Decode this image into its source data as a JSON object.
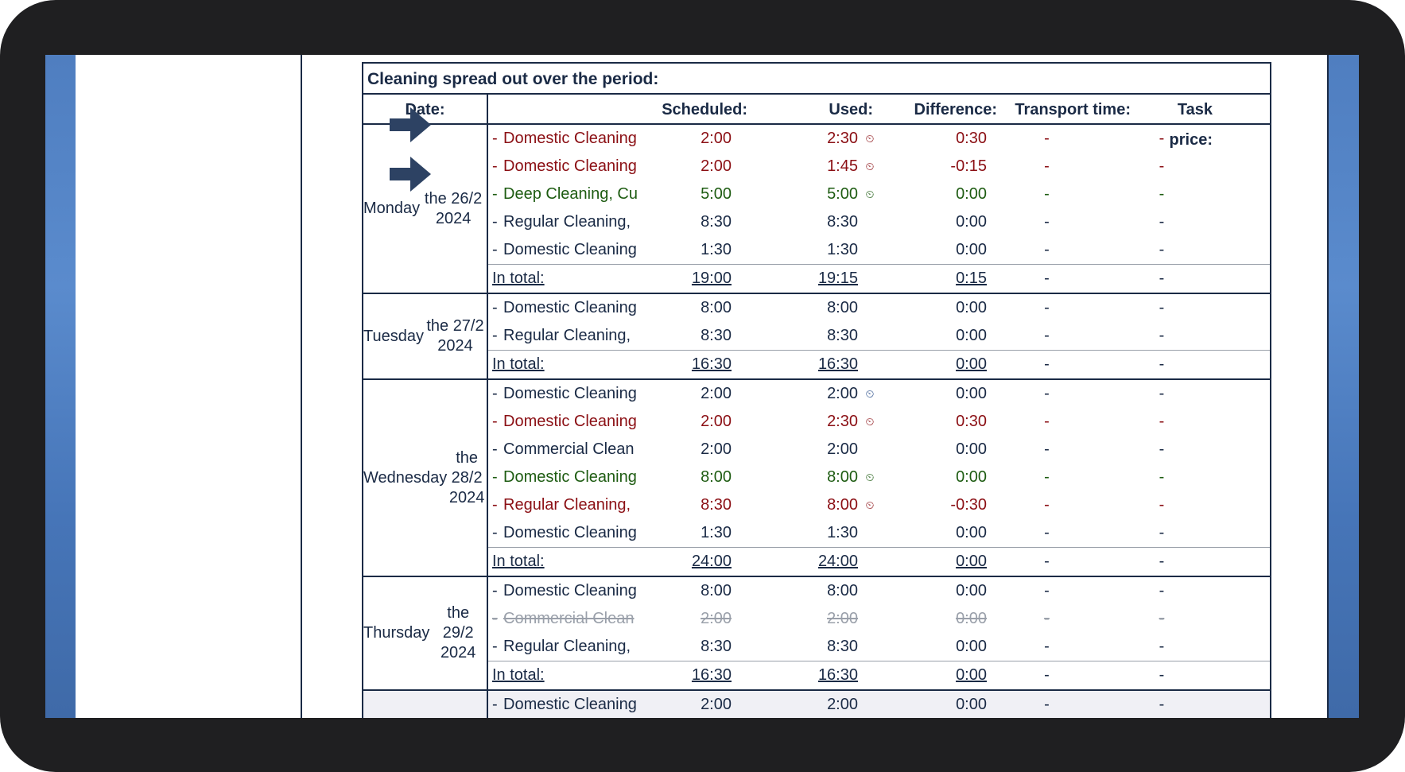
{
  "report": {
    "title": "Cleaning spread out over the period:",
    "headers": {
      "date": "Date:",
      "scheduled": "Scheduled:",
      "used": "Used:",
      "difference": "Difference:",
      "transport": "Transport time:",
      "price": "Task price:"
    },
    "total_label": "In total:",
    "days": [
      {
        "day": "Monday",
        "date": "the 26/2 2024",
        "rows": [
          {
            "desc": "Domestic Cleaning",
            "sched": "2:00",
            "used": "2:30",
            "diff": "0:30",
            "transport": "-",
            "price": "-",
            "state": "red",
            "icon": "clock-red"
          },
          {
            "desc": "Domestic Cleaning",
            "sched": "2:00",
            "used": "1:45",
            "diff": "-0:15",
            "transport": "-",
            "price": "-",
            "state": "red",
            "icon": "clock-red"
          },
          {
            "desc": "Deep Cleaning, Cu",
            "sched": "5:00",
            "used": "5:00",
            "diff": "0:00",
            "transport": "-",
            "price": "-",
            "state": "green",
            "icon": "clock-green"
          },
          {
            "desc": "Regular Cleaning,",
            "sched": "8:30",
            "used": "8:30",
            "diff": "0:00",
            "transport": "-",
            "price": "-",
            "state": "normal",
            "icon": ""
          },
          {
            "desc": "Domestic Cleaning",
            "sched": "1:30",
            "used": "1:30",
            "diff": "0:00",
            "transport": "-",
            "price": "-",
            "state": "normal",
            "icon": ""
          }
        ],
        "total": {
          "sched": "19:00",
          "used": "19:15",
          "diff": "0:15",
          "transport": "-",
          "price": "-"
        }
      },
      {
        "day": "Tuesday",
        "date": "the 27/2 2024",
        "rows": [
          {
            "desc": "Domestic Cleaning",
            "sched": "8:00",
            "used": "8:00",
            "diff": "0:00",
            "transport": "-",
            "price": "-",
            "state": "normal",
            "icon": ""
          },
          {
            "desc": "Regular Cleaning,",
            "sched": "8:30",
            "used": "8:30",
            "diff": "0:00",
            "transport": "-",
            "price": "-",
            "state": "normal",
            "icon": ""
          }
        ],
        "total": {
          "sched": "16:30",
          "used": "16:30",
          "diff": "0:00",
          "transport": "-",
          "price": "-"
        }
      },
      {
        "day": "Wednesday",
        "date": "the 28/2 2024",
        "rows": [
          {
            "desc": "Domestic Cleaning",
            "sched": "2:00",
            "used": "2:00",
            "diff": "0:00",
            "transport": "-",
            "price": "-",
            "state": "normal",
            "icon": "clock-blue"
          },
          {
            "desc": "Domestic Cleaning",
            "sched": "2:00",
            "used": "2:30",
            "diff": "0:30",
            "transport": "-",
            "price": "-",
            "state": "red",
            "icon": "clock-red"
          },
          {
            "desc": "Commercial Clean",
            "sched": "2:00",
            "used": "2:00",
            "diff": "0:00",
            "transport": "-",
            "price": "-",
            "state": "normal",
            "icon": ""
          },
          {
            "desc": "Domestic Cleaning",
            "sched": "8:00",
            "used": "8:00",
            "diff": "0:00",
            "transport": "-",
            "price": "-",
            "state": "green",
            "icon": "clock-green"
          },
          {
            "desc": "Regular Cleaning,",
            "sched": "8:30",
            "used": "8:00",
            "diff": "-0:30",
            "transport": "-",
            "price": "-",
            "state": "red",
            "icon": "clock-red"
          },
          {
            "desc": "Domestic Cleaning",
            "sched": "1:30",
            "used": "1:30",
            "diff": "0:00",
            "transport": "-",
            "price": "-",
            "state": "normal",
            "icon": ""
          }
        ],
        "total": {
          "sched": "24:00",
          "used": "24:00",
          "diff": "0:00",
          "transport": "-",
          "price": "-"
        }
      },
      {
        "day": "Thursday",
        "date": "the 29/2 2024",
        "rows": [
          {
            "desc": "Domestic Cleaning",
            "sched": "8:00",
            "used": "8:00",
            "diff": "0:00",
            "transport": "-",
            "price": "-",
            "state": "normal",
            "icon": ""
          },
          {
            "desc": "Commercial Clean",
            "sched": "2:00",
            "used": "2:00",
            "diff": "0:00",
            "transport": "-",
            "price": "-",
            "state": "struck",
            "icon": ""
          },
          {
            "desc": "Regular Cleaning,",
            "sched": "8:30",
            "used": "8:30",
            "diff": "0:00",
            "transport": "-",
            "price": "-",
            "state": "normal",
            "icon": ""
          }
        ],
        "total": {
          "sched": "16:30",
          "used": "16:30",
          "diff": "0:00",
          "transport": "-",
          "price": "-"
        }
      },
      {
        "day": "",
        "date": "",
        "rows": [
          {
            "desc": "Domestic Cleaning",
            "sched": "2:00",
            "used": "2:00",
            "diff": "0:00",
            "transport": "-",
            "price": "-",
            "state": "normal",
            "icon": ""
          }
        ],
        "total": null
      }
    ]
  },
  "annotations": {
    "arrow_color": "#2d4263",
    "arrows_at_rows": [
      "0.0",
      "0.2"
    ]
  },
  "colors": {
    "red": "#8b0f14",
    "green": "#1e5c12",
    "struck": "#9aa0aa",
    "text": "#1a2a45",
    "blue_panel": "#4f7ec0"
  }
}
